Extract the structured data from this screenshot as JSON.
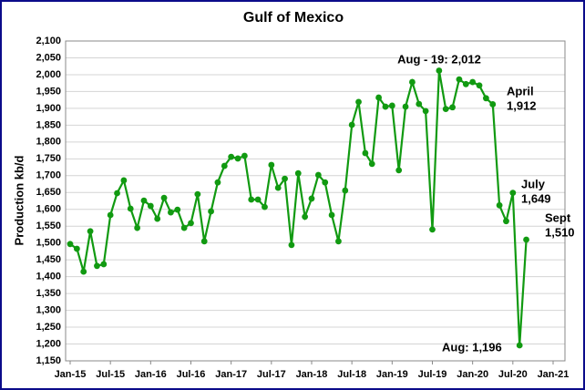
{
  "chart_data": {
    "type": "line",
    "title": "Gulf of Mexico",
    "y_label": "Production kb/d",
    "color": "#119a11",
    "grid": true,
    "x": [
      "2015-01",
      "2015-02",
      "2015-03",
      "2015-04",
      "2015-05",
      "2015-06",
      "2015-07",
      "2015-08",
      "2015-09",
      "2015-10",
      "2015-11",
      "2015-12",
      "2016-01",
      "2016-02",
      "2016-03",
      "2016-04",
      "2016-05",
      "2016-06",
      "2016-07",
      "2016-08",
      "2016-09",
      "2016-10",
      "2016-11",
      "2016-12",
      "2017-01",
      "2017-02",
      "2017-03",
      "2017-04",
      "2017-05",
      "2017-06",
      "2017-07",
      "2017-08",
      "2017-09",
      "2017-10",
      "2017-11",
      "2017-12",
      "2018-01",
      "2018-02",
      "2018-03",
      "2018-04",
      "2018-05",
      "2018-06",
      "2018-07",
      "2018-08",
      "2018-09",
      "2018-10",
      "2018-11",
      "2018-12",
      "2019-01",
      "2019-02",
      "2019-03",
      "2019-04",
      "2019-05",
      "2019-06",
      "2019-07",
      "2019-08",
      "2019-09",
      "2019-10",
      "2019-11",
      "2019-12",
      "2020-01",
      "2020-02",
      "2020-03",
      "2020-04",
      "2020-05",
      "2020-06",
      "2020-07",
      "2020-08",
      "2020-09"
    ],
    "values": [
      1497,
      1483,
      1415,
      1535,
      1432,
      1437,
      1583,
      1648,
      1686,
      1602,
      1545,
      1626,
      1610,
      1572,
      1634,
      1591,
      1599,
      1545,
      1559,
      1645,
      1505,
      1594,
      1680,
      1729,
      1756,
      1751,
      1759,
      1629,
      1629,
      1607,
      1732,
      1664,
      1691,
      1494,
      1707,
      1578,
      1632,
      1702,
      1680,
      1583,
      1505,
      1656,
      1851,
      1919,
      1767,
      1735,
      1932,
      1905,
      1908,
      1716,
      1905,
      1978,
      1913,
      1892,
      1540,
      2012,
      1898,
      1903,
      1986,
      1972,
      1978,
      1968,
      1930,
      1912,
      1612,
      1565,
      1649,
      1196,
      1510
    ],
    "xlim": [
      "2015-01",
      "2021-01"
    ],
    "xticks": [
      {
        "value": "2015-01",
        "label": "Jan-15"
      },
      {
        "value": "2015-07",
        "label": "Jul-15"
      },
      {
        "value": "2016-01",
        "label": "Jan-16"
      },
      {
        "value": "2016-07",
        "label": "Jul-16"
      },
      {
        "value": "2017-01",
        "label": "Jan-17"
      },
      {
        "value": "2017-07",
        "label": "Jul-17"
      },
      {
        "value": "2018-01",
        "label": "Jan-18"
      },
      {
        "value": "2018-07",
        "label": "Jul-18"
      },
      {
        "value": "2019-01",
        "label": "Jan-19"
      },
      {
        "value": "2019-07",
        "label": "Jul-19"
      },
      {
        "value": "2020-01",
        "label": "Jan-20"
      },
      {
        "value": "2020-07",
        "label": "Jul-20"
      },
      {
        "value": "2021-01",
        "label": "Jan-21"
      }
    ],
    "ylim": [
      1150,
      2100
    ],
    "yticks": [
      {
        "value": 1150,
        "label": "1,150"
      },
      {
        "value": 1200,
        "label": "1,200"
      },
      {
        "value": 1250,
        "label": "1,250"
      },
      {
        "value": 1300,
        "label": "1,300"
      },
      {
        "value": 1350,
        "label": "1,350"
      },
      {
        "value": 1400,
        "label": "1,400"
      },
      {
        "value": 1450,
        "label": "1,450"
      },
      {
        "value": 1500,
        "label": "1,500"
      },
      {
        "value": 1550,
        "label": "1,550"
      },
      {
        "value": 1600,
        "label": "1,600"
      },
      {
        "value": 1650,
        "label": "1,650"
      },
      {
        "value": 1700,
        "label": "1,700"
      },
      {
        "value": 1750,
        "label": "1,750"
      },
      {
        "value": 1800,
        "label": "1,800"
      },
      {
        "value": 1850,
        "label": "1,850"
      },
      {
        "value": 1900,
        "label": "1,900"
      },
      {
        "value": 1950,
        "label": "1,950"
      },
      {
        "value": 2000,
        "label": "2,000"
      },
      {
        "value": 2050,
        "label": "2,050"
      },
      {
        "value": 2100,
        "label": "2,100"
      }
    ],
    "annotations": [
      [
        "Aug - 19: 2,012"
      ],
      [
        "April",
        "1,912"
      ],
      [
        "July",
        "1,649"
      ],
      [
        "Sept",
        "1,510"
      ],
      [
        "Aug: 1,196"
      ]
    ]
  }
}
